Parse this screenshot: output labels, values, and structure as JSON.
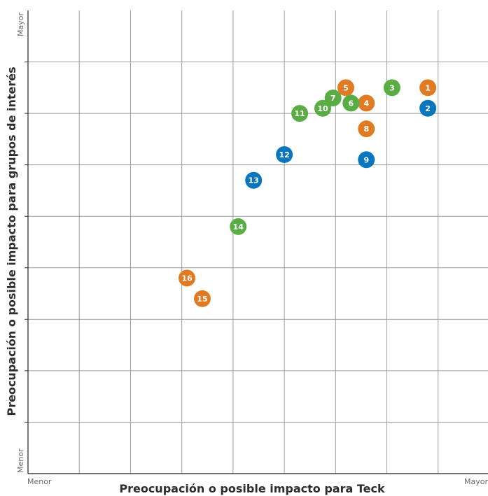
{
  "chart_data": {
    "type": "scatter",
    "xlabel": "Preocupación o posible impacto para Teck",
    "ylabel": "Preocupación o posible impacto para grupos de interés",
    "x_tick_labels": {
      "min": "Menor",
      "max": "Mayor"
    },
    "y_tick_labels": {
      "min": "Menor",
      "max": "Mayor"
    },
    "xlim": [
      0,
      9
    ],
    "ylim": [
      0,
      9
    ],
    "grid": true,
    "colors": {
      "orange": "#e07b24",
      "green": "#5aac44",
      "blue": "#0a76bd"
    },
    "points": [
      {
        "label": "1",
        "x": 7.8,
        "y": 7.5,
        "color": "orange"
      },
      {
        "label": "2",
        "x": 7.8,
        "y": 7.1,
        "color": "blue"
      },
      {
        "label": "3",
        "x": 7.1,
        "y": 7.5,
        "color": "green"
      },
      {
        "label": "4",
        "x": 6.6,
        "y": 7.2,
        "color": "orange"
      },
      {
        "label": "5",
        "x": 6.2,
        "y": 7.5,
        "color": "orange"
      },
      {
        "label": "6",
        "x": 6.3,
        "y": 7.2,
        "color": "green"
      },
      {
        "label": "7",
        "x": 5.95,
        "y": 7.3,
        "color": "green"
      },
      {
        "label": "8",
        "x": 6.6,
        "y": 6.7,
        "color": "orange"
      },
      {
        "label": "9",
        "x": 6.6,
        "y": 6.1,
        "color": "blue"
      },
      {
        "label": "10",
        "x": 5.75,
        "y": 7.1,
        "color": "green"
      },
      {
        "label": "11",
        "x": 5.3,
        "y": 7.0,
        "color": "green"
      },
      {
        "label": "12",
        "x": 5.0,
        "y": 6.2,
        "color": "blue"
      },
      {
        "label": "13",
        "x": 4.4,
        "y": 5.7,
        "color": "blue"
      },
      {
        "label": "14",
        "x": 4.1,
        "y": 4.8,
        "color": "green"
      },
      {
        "label": "15",
        "x": 3.4,
        "y": 3.4,
        "color": "orange"
      },
      {
        "label": "16",
        "x": 3.1,
        "y": 3.8,
        "color": "orange"
      }
    ]
  }
}
